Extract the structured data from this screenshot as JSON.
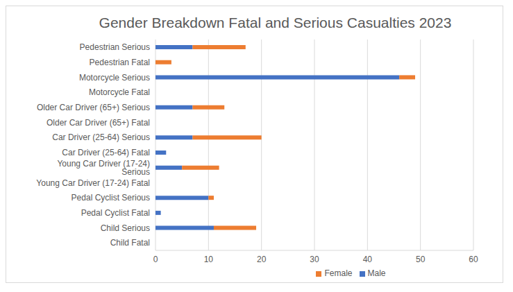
{
  "chart_data": {
    "type": "bar",
    "title": "Gender Breakdown Fatal and Serious Casualties 2023",
    "orientation": "horizontal",
    "stacked": true,
    "grid": true,
    "legend": "bottom",
    "categories": [
      "Pedestrian Serious",
      "Pedestrian Fatal",
      "Motorcycle Serious",
      "Motorcycle Fatal",
      "Older Car Driver (65+) Serious",
      "Older Car Driver (65+) Fatal",
      "Car Driver (25-64) Serious",
      "Car Driver (25-64) Fatal",
      "Young Car Driver (17-24) Serious",
      "Young Car Driver (17-24) Fatal",
      "Pedal Cyclist Serious",
      "Pedal Cyclist Fatal",
      "Child Serious",
      "Child Fatal"
    ],
    "series": [
      {
        "name": "Male",
        "color": "#4472c4",
        "values": [
          7,
          0,
          46,
          0,
          7,
          0,
          7,
          2,
          5,
          0,
          10,
          1,
          11,
          0
        ]
      },
      {
        "name": "Female",
        "color": "#ed7d31",
        "values": [
          10,
          3,
          3,
          0,
          6,
          0,
          13,
          0,
          7,
          0,
          1,
          0,
          8,
          0
        ]
      }
    ],
    "xlim": [
      0,
      60
    ],
    "xticks": [
      0,
      10,
      20,
      30,
      40,
      50,
      60
    ]
  }
}
